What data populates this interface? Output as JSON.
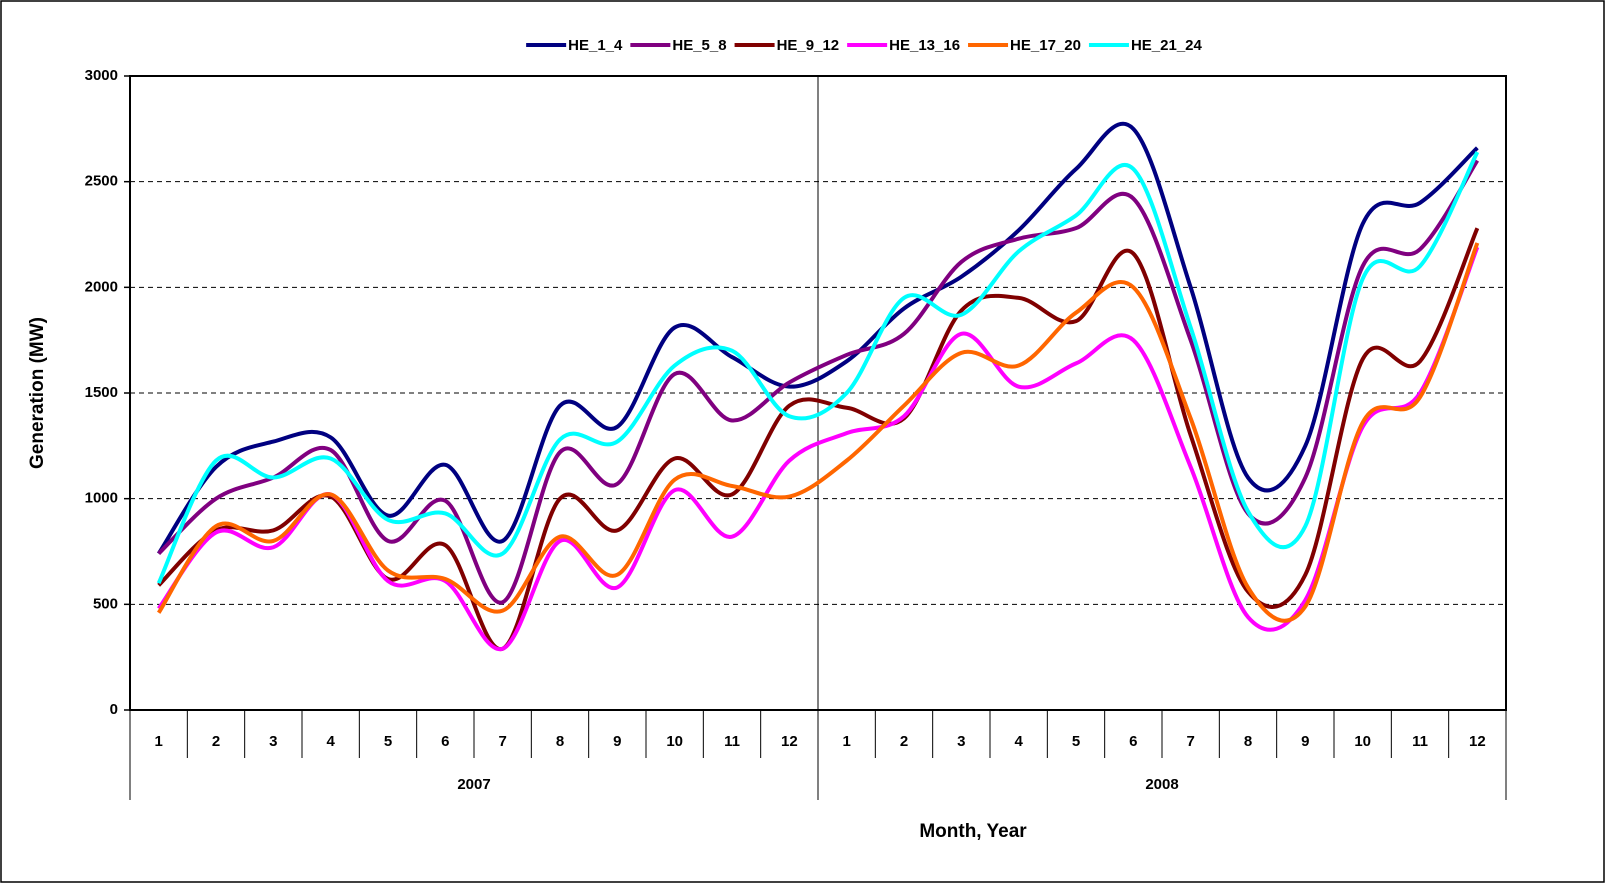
{
  "chart_data": {
    "type": "line",
    "y_label": "Generation (MW)",
    "x_label": "Month, Year",
    "categories": [
      "1",
      "2",
      "3",
      "4",
      "5",
      "6",
      "7",
      "8",
      "9",
      "10",
      "11",
      "12",
      "1",
      "2",
      "3",
      "4",
      "5",
      "6",
      "7",
      "8",
      "9",
      "10",
      "11",
      "12"
    ],
    "x_groups": [
      "2007",
      "2008"
    ],
    "ylim": [
      0,
      3000
    ],
    "yticks": [
      0,
      500,
      1000,
      1500,
      2000,
      2500,
      3000
    ],
    "grid": true,
    "smooth": true,
    "legend": "top",
    "series": [
      {
        "name": "HE_1_4",
        "color": "#000080",
        "values": [
          740,
          1150,
          1270,
          1290,
          920,
          1160,
          800,
          1440,
          1340,
          1810,
          1670,
          1530,
          1650,
          1900,
          2050,
          2270,
          2560,
          2750,
          2000,
          1100,
          1250,
          2300,
          2400,
          2660
        ]
      },
      {
        "name": "HE_5_8",
        "color": "#800080",
        "values": [
          740,
          1000,
          1100,
          1230,
          800,
          990,
          510,
          1220,
          1070,
          1590,
          1370,
          1550,
          1680,
          1780,
          2120,
          2230,
          2280,
          2420,
          1750,
          930,
          1100,
          2100,
          2180,
          2600
        ]
      },
      {
        "name": "HE_9_12",
        "color": "#800000",
        "values": [
          590,
          850,
          850,
          1010,
          620,
          780,
          290,
          1000,
          850,
          1190,
          1020,
          1440,
          1430,
          1380,
          1890,
          1950,
          1840,
          2160,
          1300,
          560,
          640,
          1660,
          1650,
          2280
        ]
      },
      {
        "name": "HE_13_16",
        "color": "#FF00FF",
        "values": [
          480,
          840,
          770,
          1020,
          610,
          610,
          290,
          800,
          580,
          1040,
          820,
          1180,
          1310,
          1390,
          1780,
          1530,
          1640,
          1750,
          1150,
          440,
          520,
          1340,
          1500,
          2190
        ]
      },
      {
        "name": "HE_17_20",
        "color": "#FF6600",
        "values": [
          460,
          870,
          800,
          1020,
          660,
          620,
          470,
          820,
          640,
          1090,
          1060,
          1010,
          1180,
          1440,
          1690,
          1630,
          1880,
          2000,
          1380,
          580,
          490,
          1360,
          1480,
          2210
        ]
      },
      {
        "name": "HE_21_24",
        "color": "#00FFFF",
        "values": [
          600,
          1180,
          1100,
          1190,
          900,
          930,
          740,
          1280,
          1270,
          1630,
          1700,
          1390,
          1500,
          1950,
          1870,
          2170,
          2340,
          2560,
          1810,
          940,
          870,
          2040,
          2100,
          2640
        ]
      }
    ]
  }
}
